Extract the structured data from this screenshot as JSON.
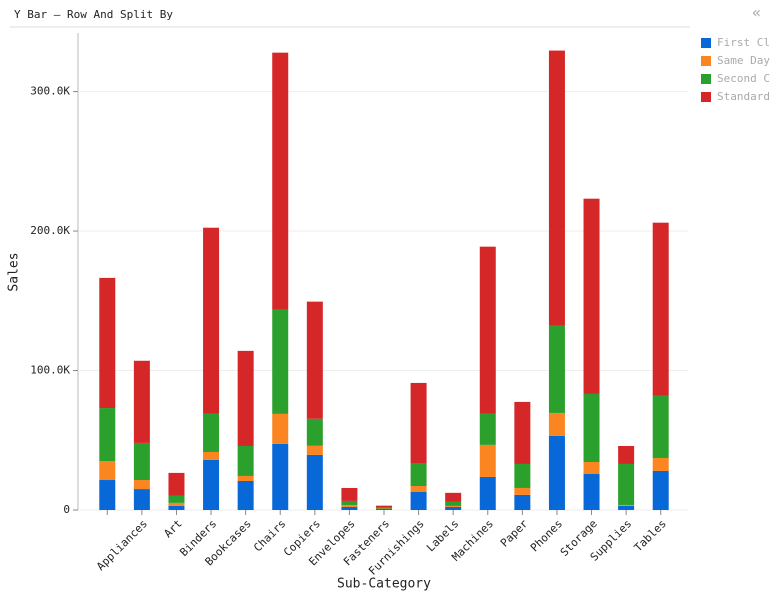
{
  "chart_data": {
    "type": "stacked_bar",
    "title": "Y Bar – Row And Split By",
    "x_label": "Sub-Category",
    "y_label": "Sales",
    "categories": [
      null,
      "Appliances",
      "Art",
      "Binders",
      "Bookcases",
      "Chairs",
      "Copiers",
      "Envelopes",
      "Fasteners",
      "Furnishings",
      "Labels",
      "Machines",
      "Paper",
      "Phones",
      "Storage",
      "Supplies",
      "Tables"
    ],
    "series": [
      {
        "name": "First Cl",
        "color": "#0868d8",
        "values": [
          21500,
          15000,
          2900,
          35900,
          20800,
          47400,
          39500,
          2200,
          700,
          12900,
          2200,
          23700,
          10800,
          53100,
          25800,
          2900,
          28000
        ]
      },
      {
        "name": "Same Day",
        "color": "#fb8520",
        "values": [
          13600,
          6500,
          2200,
          5700,
          3600,
          21500,
          6500,
          1400,
          300,
          4300,
          700,
          23000,
          5000,
          16500,
          8600,
          700,
          9300
        ]
      },
      {
        "name": "Second C",
        "color": "#2ca02c",
        "values": [
          38000,
          26600,
          5000,
          27300,
          21500,
          74600,
          19400,
          2900,
          700,
          16500,
          2900,
          22200,
          17200,
          62400,
          48800,
          29400,
          44500
        ]
      },
      {
        "name": "Standard",
        "color": "#d62728",
        "values": [
          93300,
          58900,
          16500,
          133500,
          68200,
          184400,
          84000,
          9300,
          1400,
          57400,
          6500,
          119900,
          44500,
          197400,
          140000,
          12900,
          124200
        ]
      }
    ],
    "ylim": [
      0,
      342000
    ],
    "yticks": [
      0,
      {
        "value": 100000,
        "label": "100.0K"
      },
      {
        "value": 200000,
        "label": "200.0K"
      },
      {
        "value": 300000,
        "label": "300.0K"
      }
    ],
    "grid": true,
    "legend": "right"
  }
}
